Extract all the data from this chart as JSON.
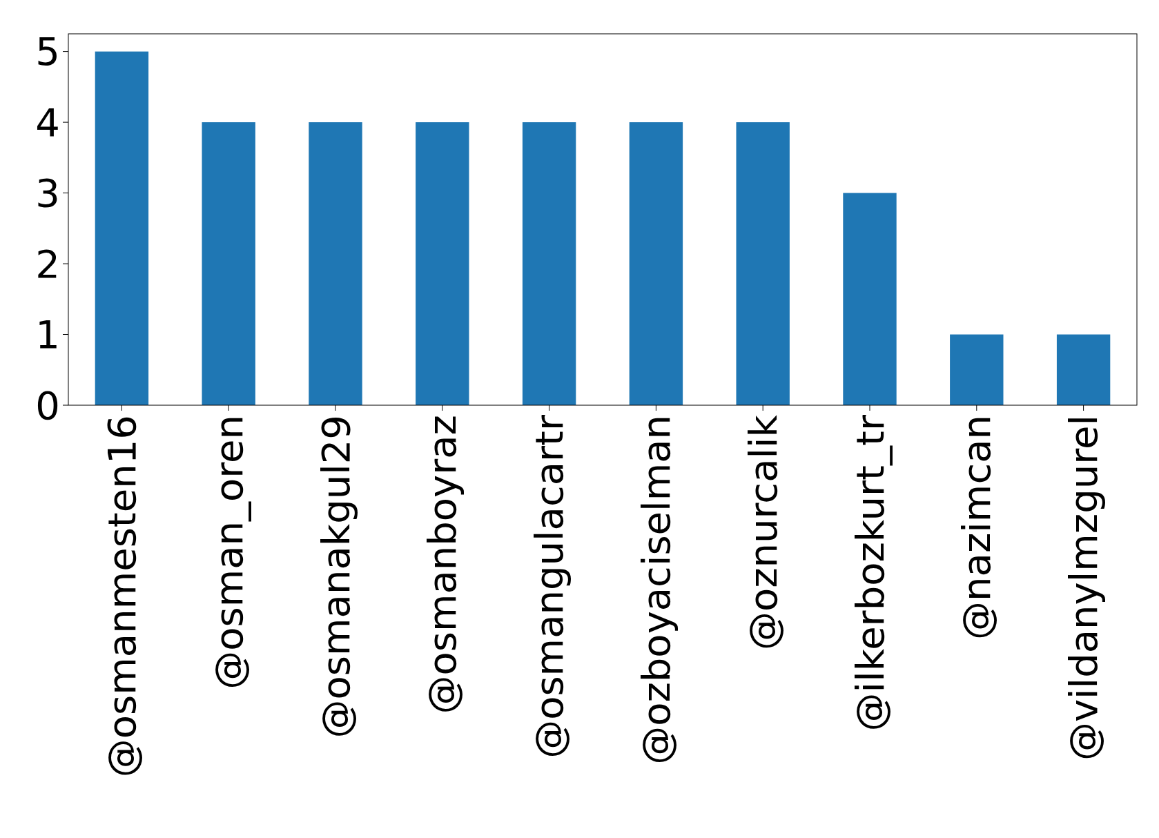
{
  "chart_data": {
    "type": "bar",
    "categories": [
      "@osmanmesten16",
      "@osman_oren",
      "@osmanakgul29",
      "@osmanboyraz",
      "@osmangulacartr",
      "@ozboyaciselman",
      "@oznurcalik",
      "@ilkerbozkurt_tr",
      "@nazimcan",
      "@vildanylmzgurel"
    ],
    "values": [
      5,
      4,
      4,
      4,
      4,
      4,
      4,
      3,
      1,
      1
    ],
    "color": "#1f77b4",
    "ylim": [
      0,
      5.25
    ],
    "yticks": [
      0,
      1,
      2,
      3,
      4,
      5
    ],
    "grid": false
  }
}
